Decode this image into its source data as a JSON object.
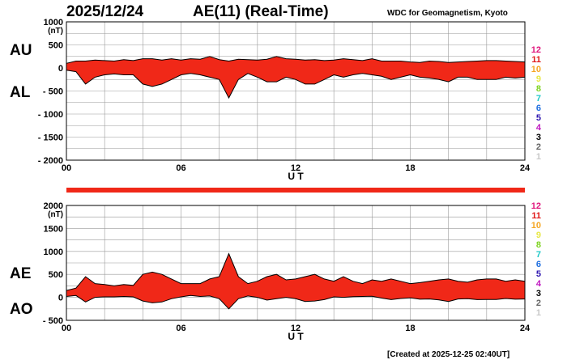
{
  "header": {
    "date": "2025/12/24",
    "title": "AE(11) (Real-Time)",
    "source": "WDC for Geomagnetism, Kyoto"
  },
  "footer": {
    "created": "[Created at 2025-12-25 02:40UT]"
  },
  "legend": {
    "items": [
      {
        "label": "12",
        "color": "#e0187e"
      },
      {
        "label": "11",
        "color": "#e01818"
      },
      {
        "label": "10",
        "color": "#f5a623"
      },
      {
        "label": "9",
        "color": "#e8e84a"
      },
      {
        "label": "8",
        "color": "#7ed321"
      },
      {
        "label": "7",
        "color": "#20c8c8"
      },
      {
        "label": "6",
        "color": "#1f6fe0"
      },
      {
        "label": "5",
        "color": "#3018b0"
      },
      {
        "label": "4",
        "color": "#c018c0"
      },
      {
        "label": "3",
        "color": "#000000"
      },
      {
        "label": "2",
        "color": "#666666"
      },
      {
        "label": "1",
        "color": "#c8c8c8"
      }
    ]
  },
  "colors": {
    "fill": "#f02818",
    "outline": "#000000",
    "grid": "#999999",
    "bar": "#f02818"
  },
  "chart_data": [
    {
      "type": "area",
      "unit": "(nT)",
      "xlabel": "U T",
      "xlim": [
        0,
        24
      ],
      "ylim": [
        -2000,
        1000
      ],
      "yticks": [
        1000,
        500,
        0,
        -500,
        -1000,
        -1500,
        -2000
      ],
      "xticks": [
        "00",
        "06",
        "12",
        "18",
        "24"
      ],
      "labels_upper": "AU",
      "labels_lower": "AL",
      "x": [
        0,
        0.5,
        1,
        1.5,
        2,
        2.5,
        3,
        3.5,
        4,
        4.5,
        5,
        5.5,
        6,
        6.5,
        7,
        7.5,
        8,
        8.5,
        9,
        9.5,
        10,
        10.5,
        11,
        11.5,
        12,
        12.5,
        13,
        13.5,
        14,
        14.5,
        15,
        15.5,
        16,
        16.5,
        17,
        17.5,
        18,
        18.5,
        19,
        19.5,
        20,
        20.5,
        21,
        21.5,
        22,
        22.5,
        23,
        23.5,
        24
      ],
      "series": [
        {
          "name": "AU",
          "values": [
            100,
            150,
            150,
            170,
            160,
            150,
            180,
            160,
            200,
            200,
            170,
            200,
            170,
            200,
            190,
            250,
            180,
            150,
            190,
            180,
            170,
            190,
            250,
            200,
            190,
            170,
            180,
            160,
            170,
            200,
            180,
            160,
            200,
            150,
            150,
            150,
            130,
            120,
            150,
            140,
            120,
            130,
            140,
            150,
            160,
            160,
            150,
            140,
            130
          ]
        },
        {
          "name": "AL",
          "values": [
            -50,
            -80,
            -350,
            -200,
            -150,
            -130,
            -150,
            -150,
            -350,
            -400,
            -350,
            -250,
            -150,
            -120,
            -150,
            -200,
            -250,
            -650,
            -250,
            -120,
            -200,
            -300,
            -300,
            -200,
            -250,
            -350,
            -350,
            -250,
            -150,
            -200,
            -150,
            -120,
            -150,
            -180,
            -250,
            -200,
            -150,
            -200,
            -220,
            -250,
            -300,
            -200,
            -200,
            -250,
            -250,
            -250,
            -200,
            -220,
            -200
          ]
        }
      ]
    },
    {
      "type": "area",
      "unit": "(nT)",
      "xlabel": "U T",
      "xlim": [
        0,
        24
      ],
      "ylim": [
        -500,
        2000
      ],
      "yticks": [
        2000,
        1500,
        1000,
        500,
        0,
        -500
      ],
      "xticks": [
        "00",
        "06",
        "12",
        "18",
        "24"
      ],
      "labels_upper": "AE",
      "labels_lower": "AO",
      "x": [
        0,
        0.5,
        1,
        1.5,
        2,
        2.5,
        3,
        3.5,
        4,
        4.5,
        5,
        5.5,
        6,
        6.5,
        7,
        7.5,
        8,
        8.5,
        9,
        9.5,
        10,
        10.5,
        11,
        11.5,
        12,
        12.5,
        13,
        13.5,
        14,
        14.5,
        15,
        15.5,
        16,
        16.5,
        17,
        17.5,
        18,
        18.5,
        19,
        19.5,
        20,
        20.5,
        21,
        21.5,
        22,
        22.5,
        23,
        23.5,
        24
      ],
      "series": [
        {
          "name": "AE",
          "values": [
            150,
            200,
            450,
            300,
            280,
            250,
            280,
            260,
            500,
            550,
            500,
            400,
            300,
            300,
            300,
            400,
            450,
            950,
            450,
            300,
            350,
            450,
            500,
            380,
            400,
            450,
            500,
            400,
            350,
            450,
            350,
            300,
            380,
            350,
            400,
            350,
            300,
            320,
            350,
            380,
            400,
            350,
            330,
            380,
            400,
            400,
            350,
            380,
            350
          ]
        },
        {
          "name": "AO",
          "values": [
            20,
            40,
            -100,
            0,
            10,
            10,
            20,
            10,
            -80,
            -120,
            -100,
            -30,
            10,
            40,
            20,
            30,
            -30,
            -250,
            -30,
            30,
            0,
            -60,
            -30,
            0,
            -30,
            -90,
            -80,
            -50,
            10,
            0,
            15,
            20,
            25,
            -15,
            -50,
            -25,
            -10,
            -40,
            -35,
            -55,
            -90,
            -35,
            -30,
            -50,
            -45,
            -45,
            -25,
            -40,
            -35
          ]
        }
      ]
    }
  ]
}
